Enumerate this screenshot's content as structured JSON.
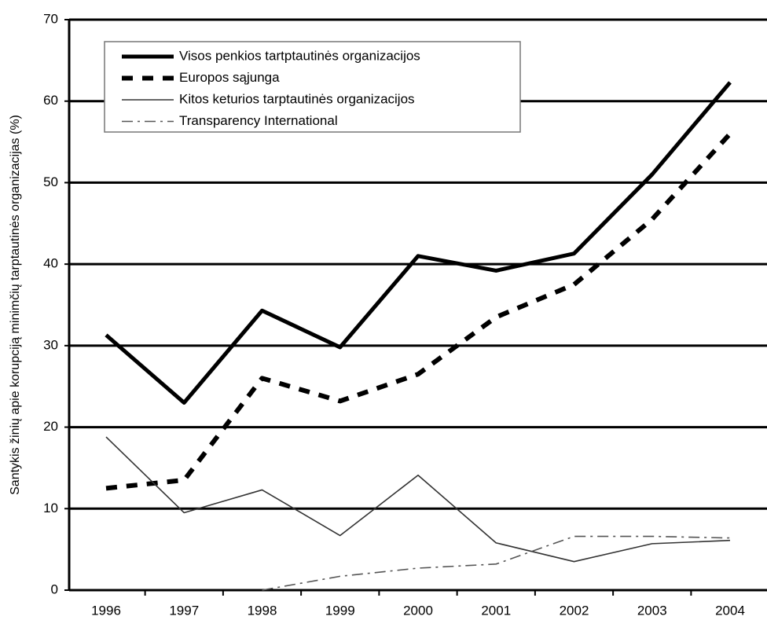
{
  "chart_data": {
    "type": "line",
    "y_label": "Santykis žinių apie korupciją minimčių tarptautinės organizacijas (%)",
    "categories": [
      "1996",
      "1997",
      "1998",
      "1999",
      "2000",
      "2001",
      "2002",
      "2003",
      "2004"
    ],
    "series": [
      {
        "name": "Visos penkios tartptautinės organizacijos",
        "color": "#000000",
        "style": "solid-thick",
        "values": [
          31.3,
          23,
          34.3,
          29.8,
          41,
          39.2,
          41.3,
          51,
          62.3
        ]
      },
      {
        "name": "Europos sąjunga",
        "color": "#000000",
        "style": "dashed",
        "values": [
          12.5,
          13.5,
          26,
          23.2,
          26.5,
          33.5,
          37.5,
          45.5,
          56
        ]
      },
      {
        "name": "Kitos keturios tarptautinės organizacijos",
        "color": "#333333",
        "style": "solid-thin",
        "values": [
          18.8,
          9.5,
          12.3,
          6.7,
          14.1,
          5.8,
          3.5,
          5.7,
          6.1
        ]
      },
      {
        "name": "Transparency International",
        "color": "#555555",
        "style": "dash-dot",
        "values": [
          null,
          null,
          0,
          1.7,
          2.7,
          3.2,
          6.6,
          6.6,
          6.4
        ]
      }
    ],
    "ylim": [
      0,
      70
    ],
    "yticks": [
      0,
      10,
      20,
      30,
      40,
      50,
      60,
      70
    ],
    "grid": true,
    "legend": "upper left"
  }
}
